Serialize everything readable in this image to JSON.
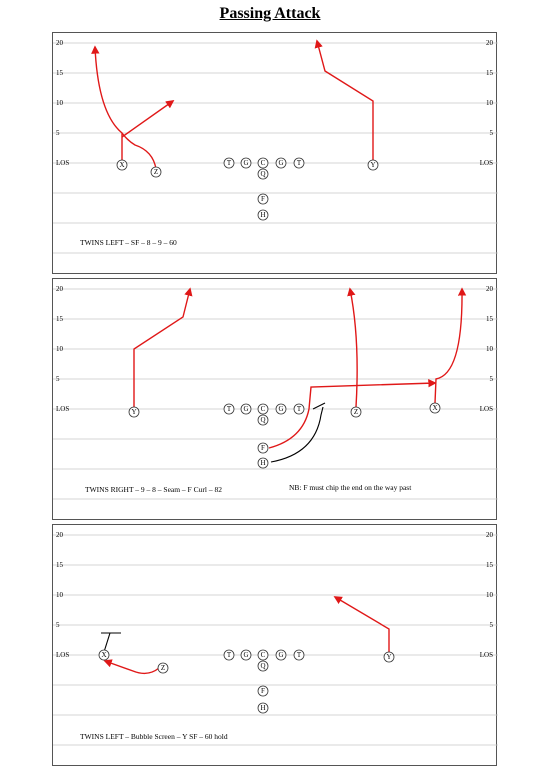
{
  "title": "Passing Attack",
  "yard_labels": [
    "20",
    "15",
    "10",
    "5",
    "LOS"
  ],
  "colors": {
    "route": "#e01818",
    "block": "#000000",
    "grid": "#c8c8c8"
  },
  "plays": [
    {
      "caption": "TWINS LEFT – SF – 8 – 9 – 60",
      "note": "",
      "players": [
        {
          "id": "X",
          "label": "X"
        },
        {
          "id": "Z",
          "label": "Z"
        },
        {
          "id": "LT",
          "label": "T"
        },
        {
          "id": "LG",
          "label": "G"
        },
        {
          "id": "C",
          "label": "C"
        },
        {
          "id": "RG",
          "label": "G"
        },
        {
          "id": "RT",
          "label": "T"
        },
        {
          "id": "Q",
          "label": "Q"
        },
        {
          "id": "Y",
          "label": "Y"
        },
        {
          "id": "F",
          "label": "F"
        },
        {
          "id": "H",
          "label": "H"
        }
      ]
    },
    {
      "caption": "TWINS RIGHT – 9 – 8 – Seam – F Curl – 82",
      "note": "NB: F must chip the end on the way past",
      "players": [
        {
          "id": "Y",
          "label": "Y"
        },
        {
          "id": "LT",
          "label": "T"
        },
        {
          "id": "LG",
          "label": "G"
        },
        {
          "id": "C",
          "label": "C"
        },
        {
          "id": "RG",
          "label": "G"
        },
        {
          "id": "RT",
          "label": "T"
        },
        {
          "id": "Q",
          "label": "Q"
        },
        {
          "id": "Z",
          "label": "Z"
        },
        {
          "id": "X",
          "label": "X"
        },
        {
          "id": "F",
          "label": "F"
        },
        {
          "id": "H",
          "label": "H"
        }
      ]
    },
    {
      "caption": "TWINS LEFT – Bubble Screen – Y SF – 60 hold",
      "note": "",
      "players": [
        {
          "id": "X",
          "label": "X"
        },
        {
          "id": "Z",
          "label": "Z"
        },
        {
          "id": "LT",
          "label": "T"
        },
        {
          "id": "LG",
          "label": "G"
        },
        {
          "id": "C",
          "label": "C"
        },
        {
          "id": "RG",
          "label": "G"
        },
        {
          "id": "RT",
          "label": "T"
        },
        {
          "id": "Q",
          "label": "Q"
        },
        {
          "id": "Y",
          "label": "Y"
        },
        {
          "id": "F",
          "label": "F"
        },
        {
          "id": "H",
          "label": "H"
        }
      ]
    }
  ]
}
